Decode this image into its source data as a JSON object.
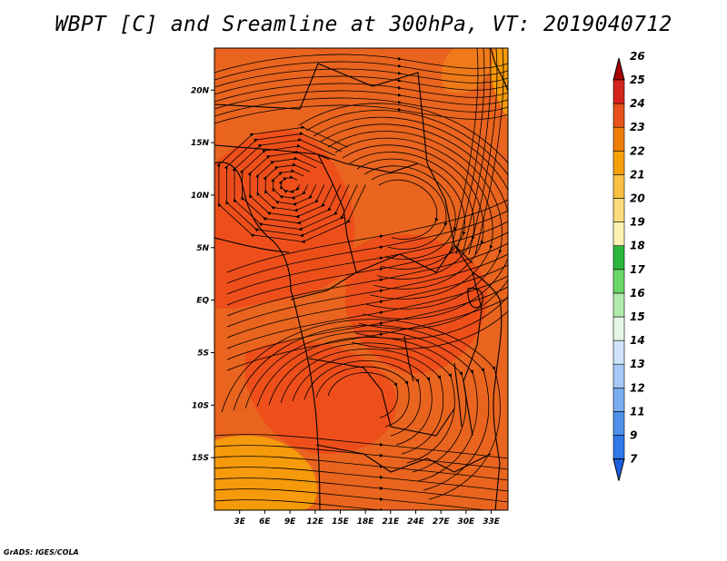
{
  "title": "WBPT [C] and Sreamline at 300hPa, VT: 2019040712",
  "footer": "GrADS: IGES/COLA",
  "map": {
    "lon_range": [
      0,
      35
    ],
    "lat_range": [
      -20,
      24
    ],
    "x_ticks": [
      {
        "value": 3,
        "label": "3E"
      },
      {
        "value": 6,
        "label": "6E"
      },
      {
        "value": 9,
        "label": "9E"
      },
      {
        "value": 12,
        "label": "12E"
      },
      {
        "value": 15,
        "label": "15E"
      },
      {
        "value": 18,
        "label": "18E"
      },
      {
        "value": 21,
        "label": "21E"
      },
      {
        "value": 24,
        "label": "24E"
      },
      {
        "value": 27,
        "label": "27E"
      },
      {
        "value": 30,
        "label": "30E"
      },
      {
        "value": 33,
        "label": "33E"
      }
    ],
    "y_ticks": [
      {
        "value": 20,
        "label": "20N"
      },
      {
        "value": 15,
        "label": "15N"
      },
      {
        "value": 10,
        "label": "10N"
      },
      {
        "value": 5,
        "label": "5N"
      },
      {
        "value": 0,
        "label": "EQ"
      },
      {
        "value": -5,
        "label": "5S"
      },
      {
        "value": -10,
        "label": "10S"
      },
      {
        "value": -15,
        "label": "15S"
      }
    ],
    "vortex_center": {
      "lon": 9,
      "lat": 11
    },
    "temperature_regions": [
      {
        "level": "22-23",
        "color": "#e8641e"
      },
      {
        "level": "23-24",
        "color": "#f0501a"
      },
      {
        "level": "21-22",
        "color": "#f59a0a"
      }
    ]
  },
  "colorbar": {
    "levels": [
      "7",
      "9",
      "11",
      "12",
      "13",
      "14",
      "15",
      "16",
      "17",
      "18",
      "19",
      "20",
      "21",
      "22",
      "23",
      "24",
      "25",
      "26"
    ],
    "colors": [
      "#1c60e0",
      "#2e78e8",
      "#4d91ec",
      "#79adf2",
      "#a6c9f6",
      "#cfe3fa",
      "#e6f6e6",
      "#b3eaad",
      "#6cd66a",
      "#2bb63c",
      "#fbf2b2",
      "#fadc7c",
      "#f9c044",
      "#f5a00a",
      "#ee7d0a",
      "#e6521a",
      "#d4231a",
      "#a80000"
    ]
  }
}
